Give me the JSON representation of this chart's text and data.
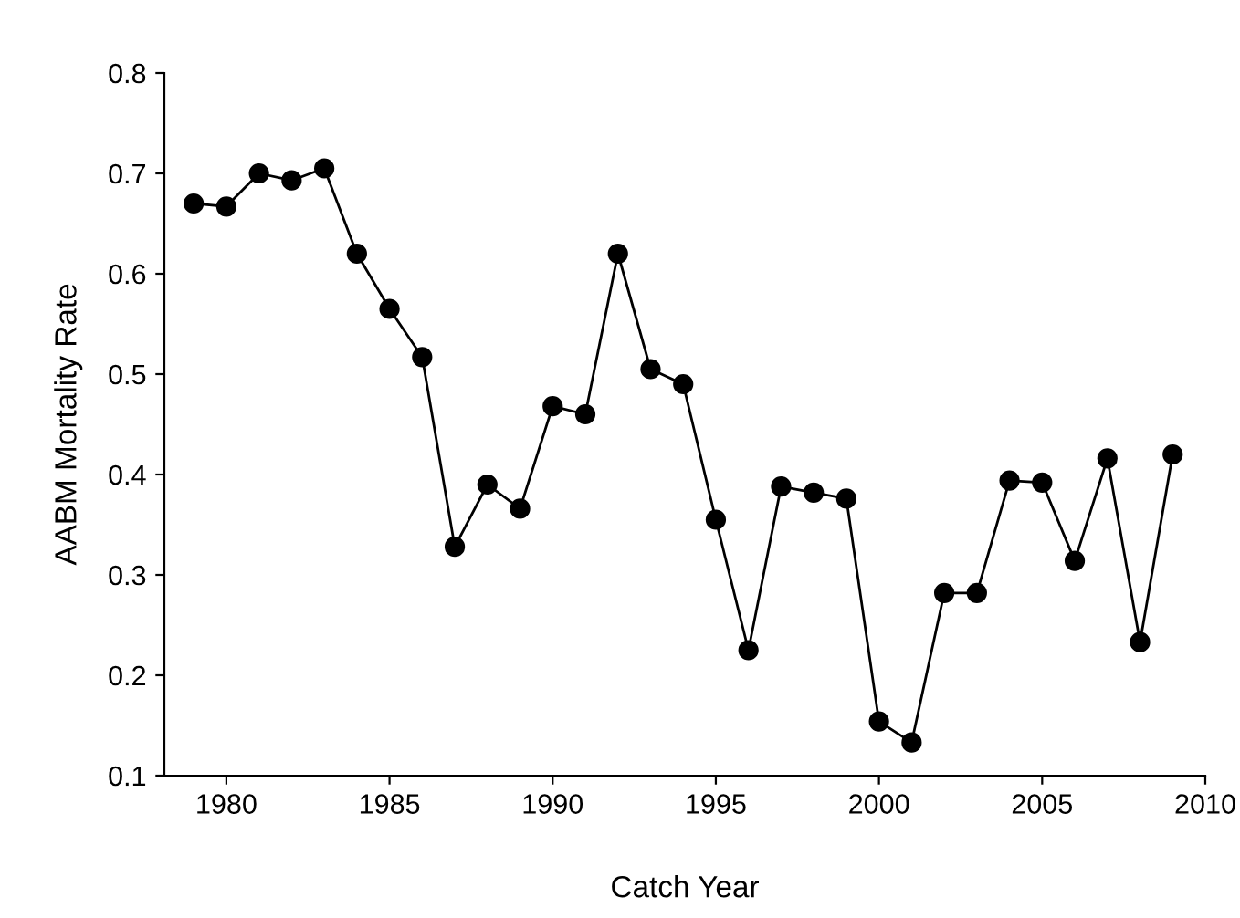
{
  "chart_data": {
    "type": "line",
    "xlabel": "Catch Year",
    "ylabel": "AABM Mortality Rate",
    "x": [
      1979,
      1980,
      1981,
      1982,
      1983,
      1984,
      1985,
      1986,
      1987,
      1988,
      1989,
      1990,
      1991,
      1992,
      1993,
      1994,
      1995,
      1996,
      1997,
      1998,
      1999,
      2000,
      2001,
      2002,
      2003,
      2004,
      2005,
      2006,
      2007,
      2008,
      2009
    ],
    "series": [
      {
        "color": "#000000",
        "values": [
          0.67,
          0.667,
          0.7,
          0.693,
          0.705,
          0.62,
          0.565,
          0.517,
          0.328,
          0.39,
          0.366,
          0.468,
          0.46,
          0.62,
          0.505,
          0.49,
          0.355,
          0.225,
          0.388,
          0.382,
          0.376,
          0.154,
          0.133,
          0.282,
          0.282,
          0.394,
          0.392,
          0.314,
          0.416,
          0.233,
          0.42
        ]
      }
    ],
    "xlim": [
      1978.1,
      2010
    ],
    "xticks": [
      1980,
      1985,
      1990,
      1995,
      2000,
      2005,
      2010
    ],
    "ylim": [
      0.1,
      0.8
    ],
    "yticks": [
      0.1,
      0.2,
      0.3,
      0.4,
      0.5,
      0.6,
      0.7,
      0.8
    ],
    "marker": "circle",
    "line_style": "solid",
    "grid": false,
    "legend": false
  }
}
